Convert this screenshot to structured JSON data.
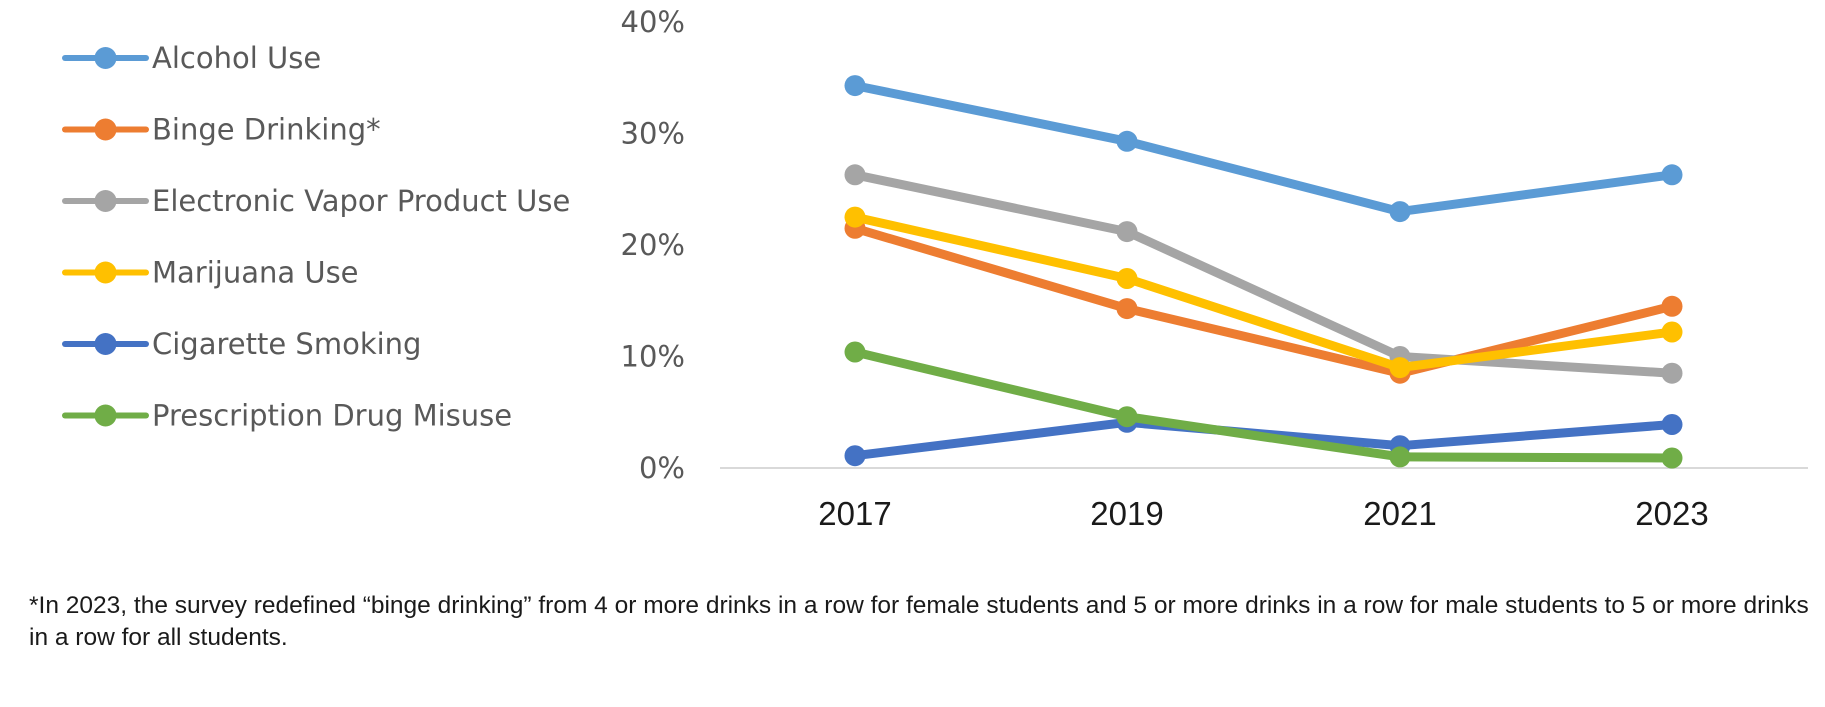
{
  "colors": {
    "alcohol": "#5B9BD5",
    "binge": "#ED7D31",
    "vapor": "#A5A5A5",
    "marijuana": "#FFC000",
    "cigarette": "#4472C4",
    "rx": "#70AD47",
    "axis": "#d9d9d9"
  },
  "footnote": "*In 2023, the survey redefined “binge drinking” from 4 or more drinks in a row for female students and 5 or more drinks in a row for male students to 5 or more drinks in a row for all students.",
  "chart_data": {
    "type": "line",
    "title": "",
    "xlabel": "",
    "ylabel": "",
    "x": [
      "2017",
      "2019",
      "2021",
      "2023"
    ],
    "ylim": [
      0,
      40
    ],
    "yticks": [
      "0%",
      "10%",
      "20%",
      "30%",
      "40%"
    ],
    "grid": false,
    "legend_position": "left",
    "series": [
      {
        "name": "Alcohol Use",
        "color": "#5B9BD5",
        "values": [
          34.3,
          29.3,
          23.0,
          26.3
        ]
      },
      {
        "name": "Binge Drinking*",
        "color": "#ED7D31",
        "values": [
          21.5,
          14.3,
          8.5,
          14.5
        ]
      },
      {
        "name": "Electronic Vapor Product Use",
        "color": "#A5A5A5",
        "values": [
          26.3,
          21.2,
          10.0,
          8.5
        ]
      },
      {
        "name": "Marijuana Use",
        "color": "#FFC000",
        "values": [
          22.5,
          17.0,
          9.0,
          12.2
        ]
      },
      {
        "name": "Cigarette Smoking",
        "color": "#4472C4",
        "values": [
          1.1,
          4.1,
          2.0,
          3.9
        ]
      },
      {
        "name": "Prescription Drug Misuse",
        "color": "#70AD47",
        "values": [
          10.4,
          4.6,
          1.0,
          0.9
        ]
      }
    ]
  }
}
